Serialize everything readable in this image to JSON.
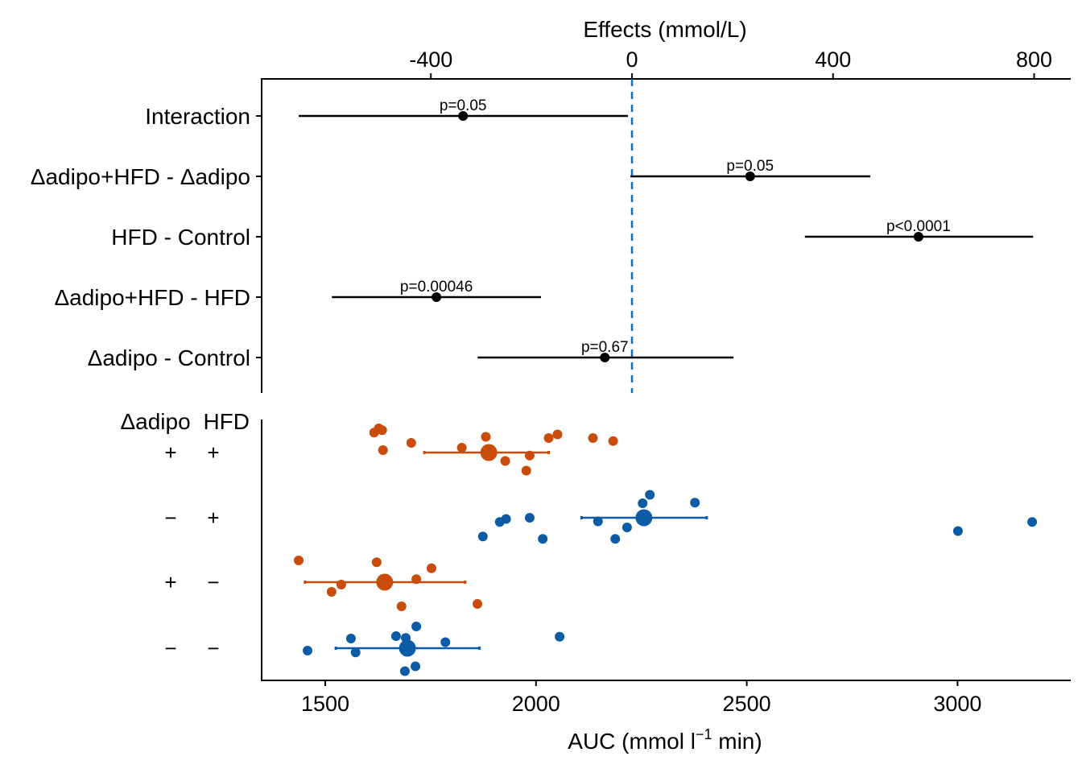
{
  "chart_data": [
    {
      "type": "forest",
      "panel": "effects",
      "xlabel": "Effects (mmol/L)",
      "xlabel_position": "top",
      "xticks": [
        -400,
        0,
        400,
        800
      ],
      "xtick_labels": [
        "-400",
        "0",
        "400",
        "800"
      ],
      "xlim": [
        -735,
        870
      ],
      "reference_line": {
        "x": 0,
        "style": "dashed",
        "color": "#1F6BB5"
      },
      "grid": false,
      "rows": [
        {
          "label": "Interaction",
          "estimate": -336,
          "lower": -663,
          "upper": -8,
          "p_label": "p=0.05"
        },
        {
          "label": "Δadipo+HFD - Δadipo",
          "estimate": 235,
          "lower": -3,
          "upper": 474,
          "p_label": "p=0.05"
        },
        {
          "label": "HFD - Control",
          "estimate": 570,
          "lower": 344,
          "upper": 798,
          "p_label": "p<0.0001"
        },
        {
          "label": "Δadipo+HFD - HFD",
          "estimate": -389,
          "lower": -597,
          "upper": -181,
          "p_label": "p=0.00046"
        },
        {
          "label": "Δadipo - Control",
          "estimate": -54,
          "lower": -307,
          "upper": 202,
          "p_label": "p=0.67"
        }
      ]
    },
    {
      "type": "scatter",
      "panel": "response",
      "xlabel": "AUC (mmol l",
      "xlabel_sup": "−1",
      "xlabel_tail": " min)",
      "xticks": [
        1500,
        2000,
        2500,
        3000
      ],
      "xtick_labels": [
        "1500",
        "2000",
        "2500",
        "3000"
      ],
      "xlim": [
        1365,
        3280
      ],
      "grid": false,
      "factor_header": [
        "Δadipo",
        "HFD"
      ],
      "colors": {
        "adipo_plus": "#C94C0B",
        "adipo_minus": "#0B5CA5"
      },
      "groups": [
        {
          "adipo": "+",
          "hfd": "+",
          "color_key": "adipo_plus",
          "mean": 1888,
          "ci_lower": 1735,
          "ci_upper": 2030,
          "points": [
            {
              "auc": 1616,
              "jitter": 0.33
            },
            {
              "auc": 1627,
              "jitter": 0.4
            },
            {
              "auc": 1635,
              "jitter": 0.37
            },
            {
              "auc": 1637,
              "jitter": 0.04
            },
            {
              "auc": 1704,
              "jitter": 0.16
            },
            {
              "auc": 1824,
              "jitter": 0.08
            },
            {
              "auc": 1881,
              "jitter": 0.26
            },
            {
              "auc": 1927,
              "jitter": -0.14
            },
            {
              "auc": 1977,
              "jitter": -0.3
            },
            {
              "auc": 1985,
              "jitter": -0.05
            },
            {
              "auc": 2030,
              "jitter": 0.24
            },
            {
              "auc": 2051,
              "jitter": 0.3
            },
            {
              "auc": 2135,
              "jitter": 0.24
            },
            {
              "auc": 2183,
              "jitter": 0.19
            }
          ]
        },
        {
          "adipo": "−",
          "hfd": "+",
          "color_key": "adipo_minus",
          "mean": 2256,
          "ci_lower": 2108,
          "ci_upper": 2405,
          "points": [
            {
              "auc": 1874,
              "jitter": -0.31
            },
            {
              "auc": 1914,
              "jitter": -0.07
            },
            {
              "auc": 1929,
              "jitter": -0.02
            },
            {
              "auc": 1985,
              "jitter": 0.0
            },
            {
              "auc": 2016,
              "jitter": -0.35
            },
            {
              "auc": 2147,
              "jitter": -0.06
            },
            {
              "auc": 2188,
              "jitter": -0.35
            },
            {
              "auc": 2216,
              "jitter": -0.16
            },
            {
              "auc": 2253,
              "jitter": 0.24
            },
            {
              "auc": 2270,
              "jitter": 0.38
            },
            {
              "auc": 2377,
              "jitter": 0.25
            },
            {
              "auc": 3001,
              "jitter": -0.22
            },
            {
              "auc": 3177,
              "jitter": -0.07
            }
          ]
        },
        {
          "adipo": "+",
          "hfd": "−",
          "color_key": "adipo_plus",
          "mean": 1641,
          "ci_lower": 1452,
          "ci_upper": 1832,
          "points": [
            {
              "auc": 1437,
              "jitter": 0.36
            },
            {
              "auc": 1515,
              "jitter": -0.16
            },
            {
              "auc": 1538,
              "jitter": -0.04
            },
            {
              "auc": 1622,
              "jitter": 0.33
            },
            {
              "auc": 1681,
              "jitter": -0.4
            },
            {
              "auc": 1716,
              "jitter": 0.05
            },
            {
              "auc": 1752,
              "jitter": 0.23
            },
            {
              "auc": 1861,
              "jitter": -0.36
            }
          ]
        },
        {
          "adipo": "−",
          "hfd": "−",
          "color_key": "adipo_minus",
          "mean": 1695,
          "ci_lower": 1525,
          "ci_upper": 1866,
          "points": [
            {
              "auc": 1458,
              "jitter": -0.04
            },
            {
              "auc": 1561,
              "jitter": 0.16
            },
            {
              "auc": 1572,
              "jitter": -0.07
            },
            {
              "auc": 1668,
              "jitter": 0.2
            },
            {
              "auc": 1689,
              "jitter": -0.38
            },
            {
              "auc": 1691,
              "jitter": 0.17
            },
            {
              "auc": 1714,
              "jitter": -0.3
            },
            {
              "auc": 1716,
              "jitter": 0.36
            },
            {
              "auc": 1785,
              "jitter": 0.1
            },
            {
              "auc": 2056,
              "jitter": 0.19
            }
          ]
        }
      ]
    }
  ]
}
